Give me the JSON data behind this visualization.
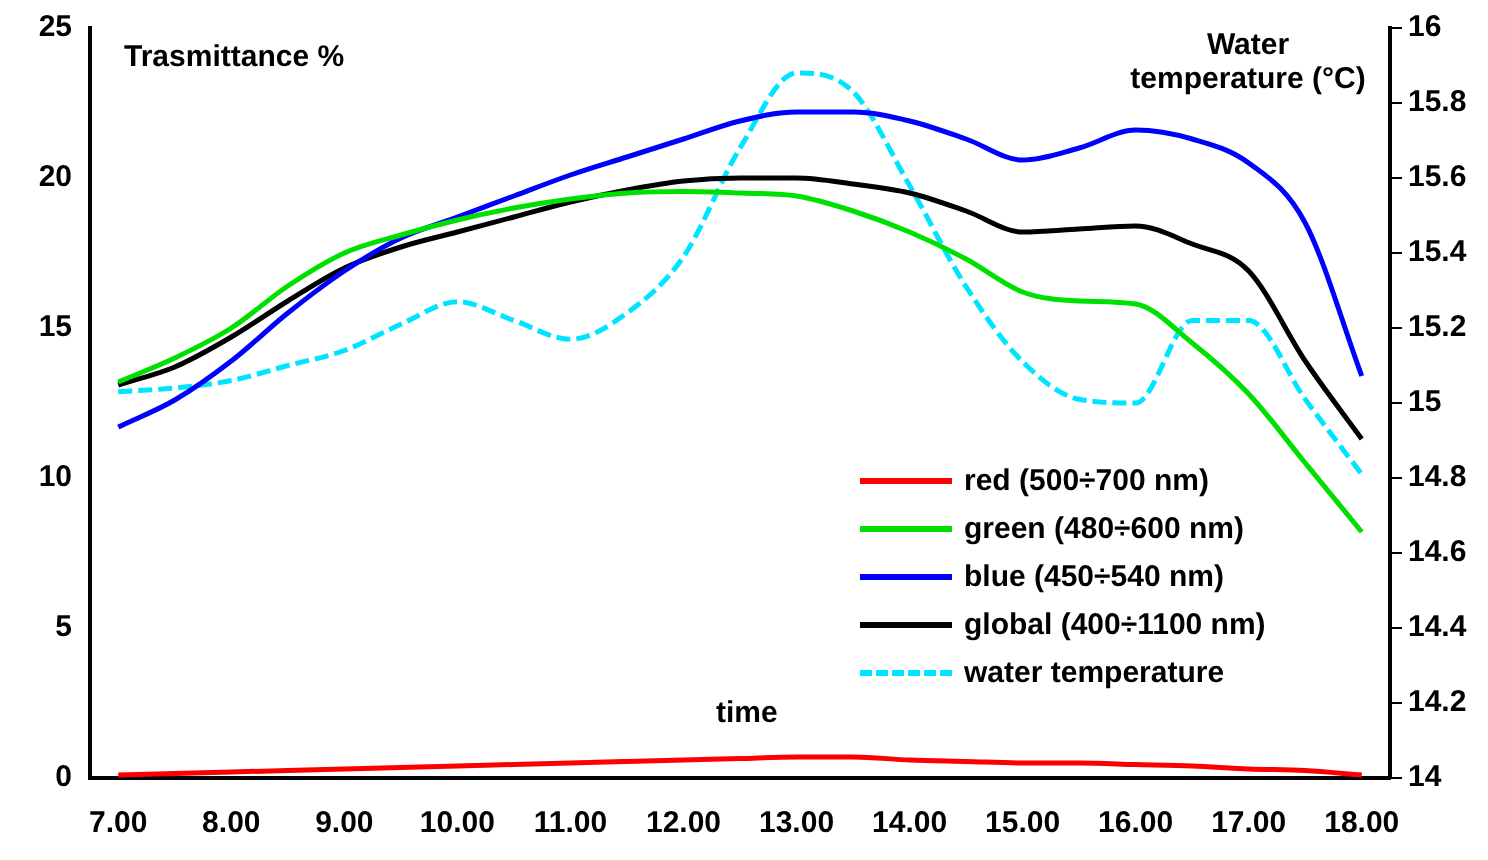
{
  "chart_data": {
    "type": "line",
    "ylabel": "Trasmittance %",
    "y2label": "Water temperature (°C)",
    "xlabel": "time",
    "categories": [
      "7.00",
      null,
      "8.00",
      null,
      "9.00",
      null,
      "10.00",
      null,
      "11.00",
      null,
      "12.00",
      null,
      "13.00",
      null,
      "14.00",
      null,
      "15.00",
      null,
      "16.00",
      null,
      "17.00",
      null,
      "18.00"
    ],
    "series": [
      {
        "name": "red (500÷700 nm)",
        "color": "#ff0000",
        "values": [
          0.1,
          0.15,
          0.2,
          0.25,
          0.3,
          0.35,
          0.4,
          0.45,
          0.5,
          0.55,
          0.6,
          0.65,
          0.7,
          0.7,
          0.6,
          0.55,
          0.5,
          0.5,
          0.45,
          0.4,
          0.3,
          0.25,
          0.1
        ]
      },
      {
        "name": "green (480÷600 nm)",
        "color": "#00e000",
        "values": [
          13.2,
          14.0,
          15.0,
          16.4,
          17.5,
          18.1,
          18.6,
          19.0,
          19.3,
          19.5,
          19.55,
          19.5,
          19.4,
          18.9,
          18.2,
          17.3,
          16.2,
          15.9,
          15.8,
          14.5,
          12.8,
          10.5,
          8.2
        ]
      },
      {
        "name": "blue (450÷540 nm)",
        "color": "#0000ff",
        "values": [
          11.7,
          12.6,
          13.9,
          15.5,
          16.9,
          18.0,
          18.7,
          19.4,
          20.1,
          20.7,
          21.3,
          21.9,
          22.2,
          22.2,
          21.9,
          21.3,
          20.6,
          21.0,
          21.6,
          21.3,
          20.5,
          18.5,
          13.4
        ]
      },
      {
        "name": "global (400÷1100 nm)",
        "color": "#000000",
        "values": [
          13.1,
          13.7,
          14.7,
          15.9,
          17.0,
          17.7,
          18.2,
          18.7,
          19.2,
          19.6,
          19.9,
          20.0,
          20.0,
          19.8,
          19.5,
          18.9,
          18.2,
          18.3,
          18.4,
          17.8,
          16.9,
          13.9,
          11.3
        ]
      },
      {
        "name": "water temperature",
        "color": "#00e5ff",
        "axis": "y2",
        "line_style": "dashed",
        "values": [
          15.03,
          15.04,
          15.06,
          15.1,
          15.14,
          15.21,
          15.27,
          15.22,
          15.17,
          15.24,
          15.39,
          15.68,
          15.88,
          15.83,
          15.58,
          15.31,
          15.11,
          15.01,
          15.0,
          15.22,
          15.22,
          15.01,
          14.81
        ]
      }
    ],
    "ylim": [
      0,
      25
    ],
    "yticks": [
      0,
      5,
      10,
      15,
      20,
      25
    ],
    "y2lim": [
      14,
      16
    ],
    "y2ticks": [
      {
        "value": 14,
        "label": "14"
      },
      {
        "value": 14.2,
        "label": "14.2"
      },
      {
        "value": 14.4,
        "label": "14.4"
      },
      {
        "value": 14.6,
        "label": "14.6"
      },
      {
        "value": 14.8,
        "label": "14.8"
      },
      {
        "value": 15,
        "label": "15"
      },
      {
        "value": 15.2,
        "label": "15.2"
      },
      {
        "value": 15.4,
        "label": "15.4"
      },
      {
        "value": 15.6,
        "label": "15.6"
      },
      {
        "value": 15.8,
        "label": "15.8"
      },
      {
        "value": 16,
        "label": "16"
      }
    ],
    "grid": false,
    "legend": "bottom right",
    "marker": "none",
    "line_style": "solid"
  }
}
